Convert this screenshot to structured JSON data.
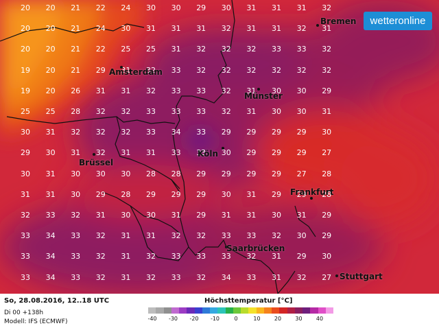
{
  "map": {
    "logo_text": "wetteronline",
    "colors": {
      "cool": "#f57c00",
      "warm": "#e0301a",
      "hot": "#9d1c54",
      "very_hot": "#6b1d86",
      "border": "#111111",
      "logo_bg": "#1d8ed6"
    },
    "grid_rows": [
      [
        "20",
        "20",
        "21",
        "22",
        "24",
        "30",
        "30",
        "29",
        "30",
        "31",
        "31",
        "31",
        "32"
      ],
      [
        "20",
        "20",
        "21",
        "24",
        "30",
        "31",
        "31",
        "31",
        "32",
        "31",
        "31",
        "32",
        "31"
      ],
      [
        "20",
        "20",
        "21",
        "22",
        "25",
        "25",
        "31",
        "32",
        "32",
        "32",
        "33",
        "33",
        "32"
      ],
      [
        "19",
        "20",
        "21",
        "29",
        "31",
        "32",
        "33",
        "32",
        "32",
        "32",
        "32",
        "32",
        "32"
      ],
      [
        "19",
        "20",
        "26",
        "31",
        "31",
        "32",
        "33",
        "33",
        "32",
        "31",
        "30",
        "30",
        "29"
      ],
      [
        "25",
        "25",
        "28",
        "32",
        "32",
        "33",
        "33",
        "33",
        "32",
        "31",
        "30",
        "30",
        "31"
      ],
      [
        "30",
        "31",
        "32",
        "32",
        "32",
        "33",
        "34",
        "33",
        "29",
        "29",
        "29",
        "29",
        "30"
      ],
      [
        "29",
        "30",
        "31",
        "32",
        "31",
        "31",
        "33",
        "33",
        "30",
        "29",
        "29",
        "29",
        "27"
      ],
      [
        "30",
        "31",
        "30",
        "30",
        "30",
        "28",
        "28",
        "29",
        "29",
        "29",
        "29",
        "27",
        "28"
      ],
      [
        "31",
        "31",
        "30",
        "29",
        "28",
        "29",
        "29",
        "29",
        "30",
        "31",
        "29",
        "29",
        "28"
      ],
      [
        "32",
        "33",
        "32",
        "31",
        "30",
        "30",
        "31",
        "29",
        "31",
        "31",
        "30",
        "31",
        "29"
      ],
      [
        "33",
        "34",
        "33",
        "32",
        "31",
        "31",
        "32",
        "32",
        "33",
        "33",
        "32",
        "30",
        "29"
      ],
      [
        "33",
        "34",
        "33",
        "32",
        "31",
        "32",
        "33",
        "33",
        "33",
        "32",
        "31",
        "29",
        "30"
      ],
      [
        "33",
        "34",
        "33",
        "32",
        "31",
        "32",
        "33",
        "32",
        "34",
        "33",
        "31",
        "32",
        "27"
      ],
      [
        "33",
        "34",
        "33",
        "32",
        "32",
        "33",
        "33",
        "32",
        "33",
        "33",
        "32",
        "32",
        "29"
      ]
    ],
    "cities": [
      {
        "name": "Bremen"
      },
      {
        "name": "Amsterdam"
      },
      {
        "name": "Münster"
      },
      {
        "name": "Brüssel"
      },
      {
        "name": "Köln"
      },
      {
        "name": "Frankfurt"
      },
      {
        "name": "Saarbrücken"
      },
      {
        "name": "Stuttgart"
      }
    ]
  },
  "footer": {
    "run_date": "So, 28.08.2016, 12..18 UTC",
    "run_info": "Di 00 +138h",
    "model": "Modell: IFS (ECMWF)",
    "legend_title": "Höchsttemperatur [°C]",
    "legend_ticks": [
      "-40",
      "-30",
      "-20",
      "-10",
      "0",
      "10",
      "20",
      "30",
      "40"
    ],
    "legend_colors": [
      "#bdbdbd",
      "#a9a9a9",
      "#8f8f8f",
      "#c06ad0",
      "#9c3cc4",
      "#6a2ab8",
      "#3a3fd0",
      "#2f7ad8",
      "#35a9e0",
      "#2cc4b8",
      "#27b04a",
      "#6cc93a",
      "#b8dc2c",
      "#f4e22a",
      "#f9b51e",
      "#f5821d",
      "#ea4d1d",
      "#d32525",
      "#b01f45",
      "#8a1e60",
      "#6f1f7c",
      "#b52aa5",
      "#e04fc8",
      "#f39be6"
    ]
  }
}
